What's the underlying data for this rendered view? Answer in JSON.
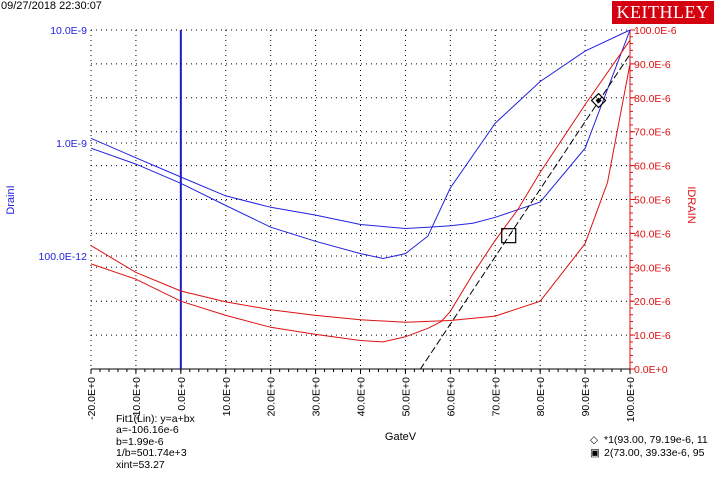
{
  "header": {
    "timestamp": "09/27/2018 22:30:07",
    "brand": "KEITHLEY"
  },
  "fit_info": {
    "line1": "Fit1(Lin):  y=a+bx",
    "line2": "a=-106.16e-6",
    "line3": "b=1.99e-6",
    "line4": "1/b=501.74e+3",
    "line5": "xint=53.27"
  },
  "cursors": {
    "c1": "*1(93.00, 79.19e-6, 11",
    "c2": "2(73.00, 39.33e-6, 95"
  },
  "colors": {
    "left_axis": "#2222dd",
    "right_axis": "#dd1111",
    "brand_bg": "#d4000f",
    "fit_line": "#000000"
  },
  "chart_data": {
    "type": "line",
    "xlabel": "GateV",
    "ylabel_left": "DrainI",
    "ylabel_right": "IDRAIN",
    "xlim": [
      -20,
      100
    ],
    "x_ticks": [
      "-20.0E+0",
      "-10.0E+0",
      "0.0E+0",
      "10.0E+0",
      "20.0E+0",
      "30.0E+0",
      "40.0E+0",
      "50.0E+0",
      "60.0E+0",
      "70.0E+0",
      "80.0E+0",
      "90.0E+0",
      "100.0E+0"
    ],
    "y_left_scale": "log",
    "y_left_ticks": [
      "10.0E-9",
      "1.0E-9",
      "100.0E-12"
    ],
    "y_right_lim": [
      0,
      0.0001
    ],
    "y_right_ticks": [
      "0.0E+0",
      "10.0E-6",
      "20.0E-6",
      "30.0E-6",
      "40.0E-6",
      "50.0E-6",
      "60.0E-6",
      "70.0E-6",
      "80.0E-6",
      "90.0E-6",
      "100.0E-6"
    ],
    "grid": true,
    "series": [
      {
        "axis": "left",
        "color": "#2222dd",
        "x": [
          -20,
          -10,
          0,
          10,
          20,
          30,
          40,
          50,
          55,
          60,
          65,
          70,
          80,
          90,
          100
        ],
        "y": [
          1.1e-09,
          7.4e-10,
          5e-10,
          3.4e-10,
          2.7e-10,
          2.3e-10,
          1.9e-10,
          1.75e-10,
          1.8e-10,
          1.85e-10,
          1.95e-10,
          2.2e-10,
          3e-10,
          9e-10,
          1e-08
        ]
      },
      {
        "axis": "left",
        "color": "#2222dd",
        "x": [
          -20,
          -10,
          0,
          10,
          20,
          30,
          40,
          45,
          50,
          55,
          60,
          70,
          80,
          90,
          100
        ],
        "y": [
          9e-10,
          6.5e-10,
          4.4e-10,
          2.8e-10,
          1.8e-10,
          1.35e-10,
          1.05e-10,
          9.5e-11,
          1.05e-10,
          1.5e-10,
          4e-10,
          1.5e-09,
          3.5e-09,
          6.5e-09,
          1e-08
        ]
      },
      {
        "axis": "right",
        "color": "#dd1111",
        "x": [
          -20,
          -10,
          0,
          10,
          20,
          30,
          40,
          50,
          60,
          70,
          80,
          90,
          95,
          100
        ],
        "y": [
          3.64e-05,
          2.85e-05,
          2.3e-05,
          1.98e-05,
          1.75e-05,
          1.58e-05,
          1.45e-05,
          1.38e-05,
          1.43e-05,
          1.56e-05,
          2e-05,
          3.7e-05,
          5.5e-05,
          9e-05
        ]
      },
      {
        "axis": "right",
        "color": "#dd1111",
        "x": [
          -20,
          -10,
          0,
          10,
          20,
          30,
          40,
          45,
          50,
          55,
          58,
          60,
          65,
          70,
          75,
          80,
          90,
          100
        ],
        "y": [
          3.1e-05,
          2.65e-05,
          2e-05,
          1.58e-05,
          1.23e-05,
          1.02e-05,
          8.4e-06,
          8e-06,
          9.5e-06,
          1.2e-05,
          1.4e-05,
          1.7e-05,
          2.8e-05,
          3.8e-05,
          4.7e-05,
          5.8e-05,
          7.8e-05,
          9.7e-05
        ]
      }
    ],
    "fit_line": {
      "a": -0.00010616,
      "b": 1.99e-06,
      "x_range": [
        53.27,
        100
      ]
    },
    "markers": [
      {
        "label": "1",
        "shape": "diamond",
        "x": 93,
        "y": 7.919e-05
      },
      {
        "label": "2",
        "shape": "square",
        "x": 73,
        "y": 3.933e-05
      }
    ]
  }
}
